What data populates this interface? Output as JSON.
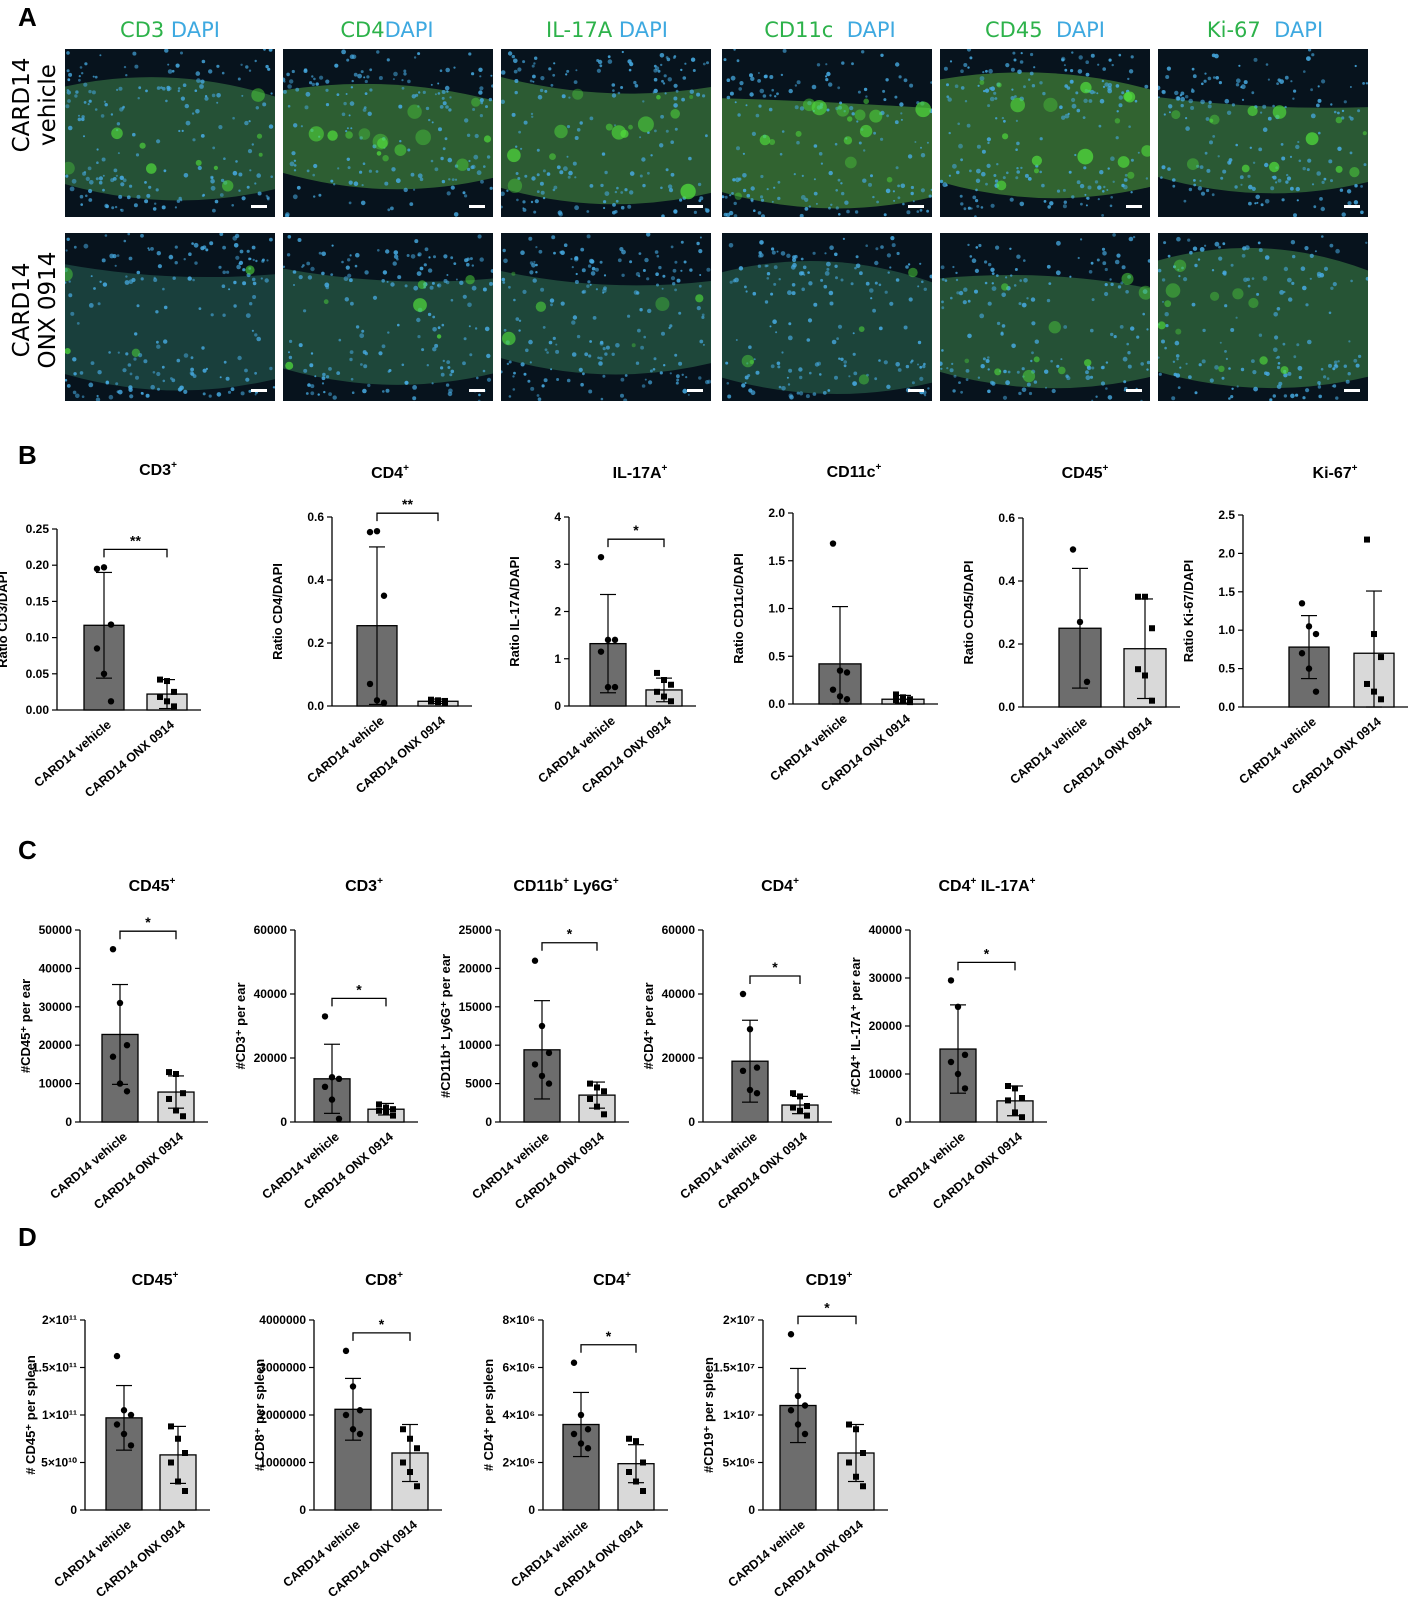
{
  "panels": {
    "a": "A",
    "b": "B",
    "c": "C",
    "d": "D"
  },
  "panel_a": {
    "stains": [
      {
        "marker": "CD3",
        "dapi": "DAPI"
      },
      {
        "marker": "CD4",
        "dapi": "DAPI"
      },
      {
        "marker": "IL-17A",
        "dapi": "DAPI"
      },
      {
        "marker": "CD11c",
        "dapi": "DAPI"
      },
      {
        "marker": "CD45",
        "dapi": "DAPI"
      },
      {
        "marker": "Ki-67",
        "dapi": "DAPI"
      }
    ],
    "rows": [
      {
        "line1": "CARD14",
        "line2": "vehicle"
      },
      {
        "line1": "CARD14",
        "line2": "ONX 0914"
      }
    ],
    "colors": {
      "marker": "#2db24a",
      "dapi": "#3ea9e0",
      "tissue_bg": "#06101a"
    }
  },
  "colors": {
    "vehicle_bar": "#6d6d6d",
    "onx_bar": "#d9d9d9"
  },
  "chart_data": [
    {
      "id": "B1",
      "panel": "B",
      "type": "bar",
      "title": "CD3",
      "sup": "+",
      "ylabel": "Ratio CD3/DAPI",
      "ylim": [
        0,
        0.25
      ],
      "yticks": [
        "0.00",
        "0.05",
        "0.10",
        "0.15",
        "0.20",
        "0.25"
      ],
      "categories": [
        "CARD14 vehicle",
        "CARD14 ONX 0914"
      ],
      "values": [
        0.117,
        0.022
      ],
      "sd": [
        0.073,
        0.02
      ],
      "points": [
        [
          0.195,
          0.197,
          0.118,
          0.085,
          0.05,
          0.012
        ],
        [
          0.042,
          0.04,
          0.025,
          0.018,
          0.012,
          0.005
        ]
      ],
      "sig": "**"
    },
    {
      "id": "B2",
      "panel": "B",
      "type": "bar",
      "title": "CD4",
      "sup": "+",
      "ylabel": "Ratio  CD4/DAPI",
      "ylim": [
        0,
        0.6
      ],
      "yticks": [
        "0.0",
        "0.2",
        "0.4",
        "0.6"
      ],
      "categories": [
        "CARD14 vehicle",
        "CARD14 ONX 0914"
      ],
      "values": [
        0.255,
        0.015
      ],
      "sd": [
        0.25,
        0.007
      ],
      "points": [
        [
          0.552,
          0.555,
          0.35,
          0.07,
          0.018,
          0.01
        ],
        [
          0.02,
          0.018,
          0.016,
          0.014,
          0.012,
          0.01
        ]
      ],
      "sig": "**"
    },
    {
      "id": "B3",
      "panel": "B",
      "type": "bar",
      "title": "IL-17A",
      "sup": "+",
      "ylabel": "Ratio IL-17A/DAPI",
      "ylim": [
        0,
        4
      ],
      "yticks": [
        "0",
        "1",
        "2",
        "3",
        "4"
      ],
      "categories": [
        "CARD14 vehicle",
        "CARD14 ONX 0914"
      ],
      "values": [
        1.32,
        0.34
      ],
      "sd": [
        1.04,
        0.25
      ],
      "points": [
        [
          3.15,
          1.4,
          1.4,
          1.15,
          0.4,
          0.4
        ],
        [
          0.7,
          0.55,
          0.45,
          0.3,
          0.2,
          0.1
        ]
      ],
      "sig": "*"
    },
    {
      "id": "B4",
      "panel": "B",
      "type": "bar",
      "title": "CD11c",
      "sup": "+",
      "ylabel": "Ratio CD11c/DAPI",
      "ylim": [
        0,
        2.0
      ],
      "yticks": [
        "0.0",
        "0.5",
        "1.0",
        "1.5",
        "2.0"
      ],
      "categories": [
        "CARD14 vehicle",
        "CARD14 ONX 0914"
      ],
      "values": [
        0.42,
        0.05
      ],
      "sd": [
        0.6,
        0.04
      ],
      "points": [
        [
          1.68,
          0.35,
          0.33,
          0.15,
          0.08,
          0.05
        ],
        [
          0.1,
          0.07,
          0.05,
          0.04,
          0.03,
          0.02
        ]
      ],
      "sig": ""
    },
    {
      "id": "B5",
      "panel": "B",
      "type": "bar",
      "title": "CD45",
      "sup": "+",
      "ylabel": "Ratio  CD45/DAPI",
      "ylim": [
        0,
        0.6
      ],
      "yticks": [
        "0.0",
        "0.2",
        "0.4",
        "0.6"
      ],
      "categories": [
        "CARD14 vehicle",
        "CARD14 ONX 0914"
      ],
      "values": [
        0.25,
        0.185
      ],
      "sd": [
        0.19,
        0.158
      ],
      "points": [
        [
          0.5,
          0.27,
          0.08
        ],
        [
          0.35,
          0.35,
          0.25,
          0.12,
          0.1,
          0.02
        ]
      ],
      "sig": ""
    },
    {
      "id": "B6",
      "panel": "B",
      "type": "bar",
      "title": "Ki-67",
      "sup": "+",
      "ylabel": "Ratio Ki-67/DAPI",
      "ylim": [
        0,
        2.5
      ],
      "yticks": [
        "0.0",
        "0.5",
        "1.0",
        "1.5",
        "2.0",
        "2.5"
      ],
      "categories": [
        "CARD14 vehicle",
        "CARD14 ONX 0914"
      ],
      "values": [
        0.78,
        0.7
      ],
      "sd": [
        0.41,
        0.81
      ],
      "points": [
        [
          1.35,
          1.05,
          0.95,
          0.7,
          0.5,
          0.2
        ],
        [
          2.18,
          0.95,
          0.65,
          0.3,
          0.2,
          0.1
        ]
      ],
      "sig": ""
    },
    {
      "id": "C1",
      "panel": "C",
      "type": "bar",
      "title": "CD45",
      "sup": "+",
      "ylabel": "#CD45⁺ per ear",
      "ylim": [
        0,
        50000
      ],
      "yticks": [
        "0",
        "10000",
        "20000",
        "30000",
        "40000",
        "50000"
      ],
      "categories": [
        "CARD14 vehicle",
        "CARD14 ONX 0914"
      ],
      "values": [
        22800,
        7800
      ],
      "sd": [
        13000,
        4200
      ],
      "points": [
        [
          45000,
          31000,
          20000,
          17000,
          10000,
          8000
        ],
        [
          13000,
          12500,
          7500,
          6000,
          3000,
          1500
        ]
      ],
      "sig": "*"
    },
    {
      "id": "C2",
      "panel": "C",
      "type": "bar",
      "title": "CD3",
      "sup": "+",
      "ylabel": "#CD3⁺ per ear",
      "ylim": [
        0,
        60000
      ],
      "yticks": [
        "0",
        "20000",
        "40000",
        "60000"
      ],
      "categories": [
        "CARD14 vehicle",
        "CARD14 ONX 0914"
      ],
      "values": [
        13500,
        4000
      ],
      "sd": [
        10800,
        1800
      ],
      "points": [
        [
          33000,
          14000,
          13500,
          11000,
          7000,
          1000
        ],
        [
          5500,
          4500,
          4000,
          3500,
          3000,
          2000
        ]
      ],
      "sig": "*"
    },
    {
      "id": "C3",
      "panel": "C",
      "type": "bar",
      "title": "CD11b",
      "sup": "+",
      "title2": " Ly6G",
      "sup2": "+",
      "ylabel": "#CD11b⁺ Ly6G⁺ per ear",
      "ylim": [
        0,
        25000
      ],
      "yticks": [
        "0",
        "5000",
        "10000",
        "15000",
        "20000",
        "25000"
      ],
      "categories": [
        "CARD14 vehicle",
        "CARD14 ONX 0914"
      ],
      "values": [
        9400,
        3500
      ],
      "sd": [
        6400,
        1700
      ],
      "points": [
        [
          21000,
          12500,
          9000,
          7500,
          6000,
          5000
        ],
        [
          5000,
          4500,
          4000,
          3000,
          2000,
          1000
        ]
      ],
      "sig": "*"
    },
    {
      "id": "C4",
      "panel": "C",
      "type": "bar",
      "title": "CD4",
      "sup": "+",
      "ylabel": "#CD4⁺ per ear",
      "ylim": [
        0,
        60000
      ],
      "yticks": [
        "0",
        "20000",
        "40000",
        "60000"
      ],
      "categories": [
        "CARD14 vehicle",
        "CARD14 ONX 0914"
      ],
      "values": [
        19000,
        5300
      ],
      "sd": [
        12800,
        2700
      ],
      "points": [
        [
          40000,
          29000,
          17000,
          16000,
          10000,
          9000
        ],
        [
          9000,
          8000,
          5000,
          4500,
          3500,
          2000
        ]
      ],
      "sig": "*"
    },
    {
      "id": "C5",
      "panel": "C",
      "type": "bar",
      "title": "CD4",
      "sup": "+",
      "title2": " IL-17A",
      "sup2": "+",
      "ylabel": "#CD4⁺ IL-17A⁺ per ear",
      "ylim": [
        0,
        40000
      ],
      "yticks": [
        "0",
        "10000",
        "20000",
        "30000",
        "40000"
      ],
      "categories": [
        "CARD14 vehicle",
        "CARD14 ONX 0914"
      ],
      "values": [
        15200,
        4400
      ],
      "sd": [
        9200,
        3100
      ],
      "points": [
        [
          29500,
          24000,
          14000,
          12500,
          10000,
          7000
        ],
        [
          7500,
          7000,
          5000,
          4500,
          2000,
          1000
        ]
      ],
      "sig": "*"
    },
    {
      "id": "D1",
      "panel": "D",
      "type": "bar",
      "title": "CD45",
      "sup": "+",
      "ylabel": "# CD45⁺ per spleen",
      "ylim": [
        0,
        200000000000
      ],
      "yticks": [
        "0",
        "5×10¹⁰",
        "1×10¹¹",
        "1.5×10¹¹",
        "2×10¹¹"
      ],
      "categories": [
        "CARD14 vehicle",
        "CARD14 ONX 0914"
      ],
      "values": [
        97000000000,
        58000000000
      ],
      "sd": [
        34000000000,
        30000000000
      ],
      "points": [
        [
          162000000000,
          105000000000,
          100000000000,
          90000000000,
          80000000000,
          68000000000
        ],
        [
          88000000000,
          75000000000,
          60000000000,
          50000000000,
          30000000000,
          20000000000
        ]
      ],
      "sig": ""
    },
    {
      "id": "D2",
      "panel": "D",
      "type": "bar",
      "title": "CD8",
      "sup": "+",
      "ylabel": "# CD8⁺ per spleen",
      "ylim": [
        0,
        4000000
      ],
      "yticks": [
        "0",
        "1000000",
        "2000000",
        "3000000",
        "4000000"
      ],
      "categories": [
        "CARD14 vehicle",
        "CARD14 ONX 0914"
      ],
      "values": [
        2120000,
        1200000
      ],
      "sd": [
        650000,
        600000
      ],
      "points": [
        [
          3350000,
          2600000,
          2100000,
          2000000,
          1700000,
          1600000
        ],
        [
          1700000,
          1500000,
          1300000,
          1000000,
          800000,
          500000
        ]
      ],
      "sig": "*"
    },
    {
      "id": "D3",
      "panel": "D",
      "type": "bar",
      "title": "CD4",
      "sup": "+",
      "ylabel": "# CD4⁺ per spleen",
      "ylim": [
        0,
        8000000
      ],
      "yticks": [
        "0",
        "2×10⁶",
        "4×10⁶",
        "6×10⁶",
        "8×10⁶"
      ],
      "categories": [
        "CARD14 vehicle",
        "CARD14 ONX 0914"
      ],
      "values": [
        3600000,
        1950000
      ],
      "sd": [
        1350000,
        800000
      ],
      "points": [
        [
          6200000,
          4000000,
          3400000,
          3200000,
          2800000,
          2600000
        ],
        [
          3000000,
          2900000,
          2000000,
          1600000,
          1200000,
          800000
        ]
      ],
      "sig": "*"
    },
    {
      "id": "D4",
      "panel": "D",
      "type": "bar",
      "title": "CD19",
      "sup": "+",
      "ylabel": "#CD19⁺ per spleen",
      "ylim": [
        0,
        20000000
      ],
      "yticks": [
        "0",
        "5×10⁶",
        "1×10⁷",
        "1.5×10⁷",
        "2×10⁷"
      ],
      "categories": [
        "CARD14 vehicle",
        "CARD14 ONX 0914"
      ],
      "values": [
        11000000,
        6000000
      ],
      "sd": [
        3900000,
        3000000
      ],
      "points": [
        [
          18500000,
          12000000,
          11000000,
          10500000,
          9000000,
          8000000
        ],
        [
          9000000,
          8500000,
          6000000,
          5000000,
          3500000,
          2500000
        ]
      ],
      "sig": "*"
    }
  ]
}
